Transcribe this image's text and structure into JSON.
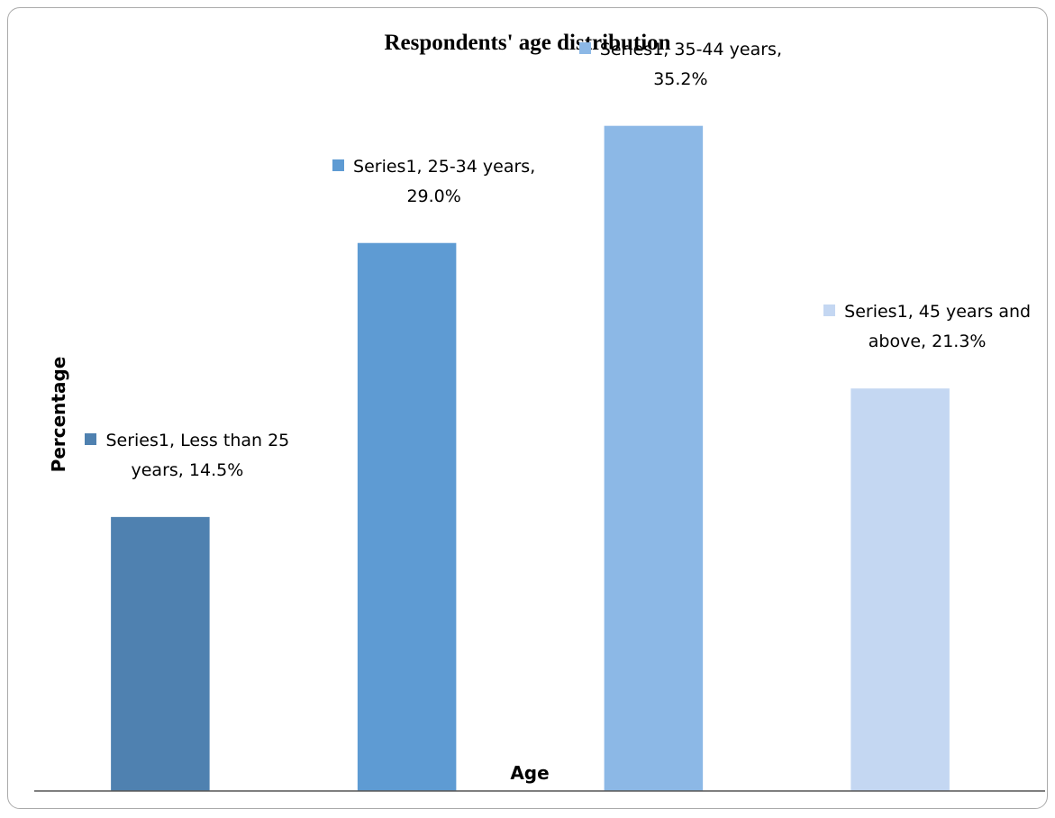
{
  "chart_data": {
    "type": "bar",
    "title": "Respondents' age distribution",
    "x_label": "Age",
    "y_label": "Percentage",
    "categories": [
      "Less than 25 years",
      "25-34 years",
      "35-44 years",
      "45 years and above"
    ],
    "series": [
      {
        "name": "Series1",
        "colors": [
          "#4f81b0",
          "#5e9bd3",
          "#8cb8e6",
          "#c4d7f2"
        ],
        "values": [
          14.5,
          29.0,
          35.2,
          21.3
        ],
        "value_labels": [
          "14.5%",
          "29.0%",
          "35.2%",
          "21.3%"
        ]
      }
    ],
    "label_separator": ", ",
    "ylim": [
      0,
      40
    ]
  }
}
